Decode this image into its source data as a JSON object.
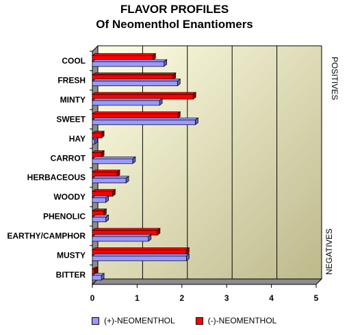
{
  "title_line1": "FLAVOR PROFILES",
  "title_line2": "Of Neomenthol Enantiomers",
  "chart_data": {
    "type": "bar",
    "orientation": "horizontal",
    "categories": [
      "COOL",
      "FRESH",
      "MINTY",
      "SWEET",
      "HAY",
      "CARROT",
      "HERBACEOUS",
      "WOODY",
      "PHENOLIC",
      "EARTHY/CAMPHOR",
      "MUSTY",
      "BITTER"
    ],
    "series": [
      {
        "name": "(+)-NEOMENTHOL",
        "color": "#9999ff",
        "values": [
          1.6,
          1.9,
          1.5,
          2.3,
          0.05,
          0.9,
          0.75,
          0.3,
          0.3,
          1.25,
          2.1,
          0.2
        ]
      },
      {
        "name": "(-)-NEOMENTHOL",
        "color": "#ff0000",
        "values": [
          1.35,
          1.8,
          2.25,
          1.9,
          0.2,
          0.2,
          0.55,
          0.45,
          0.25,
          1.45,
          2.1,
          0.05
        ]
      }
    ],
    "xlim": [
      0,
      5
    ],
    "xticks": [
      "0",
      "1",
      "2",
      "3",
      "4",
      "5"
    ],
    "xlabel": "",
    "ylabel": "",
    "side_labels": {
      "top": "POSITIVES",
      "bottom": "NEGATIVES"
    },
    "legend_position": "bottom",
    "grid": true,
    "background_gradient": [
      "#ffffe6",
      "#bdb88a"
    ]
  }
}
